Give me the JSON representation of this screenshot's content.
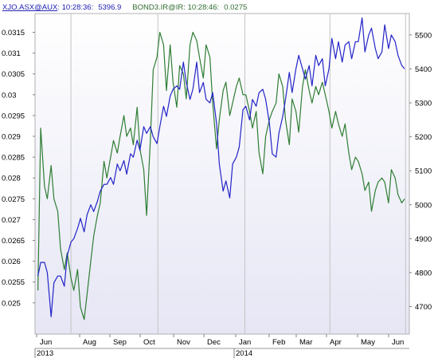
{
  "header": {
    "series1_symbol": "XJO.ASX@AUX",
    "series1_time": "10:28:36",
    "series1_value": "5396.9",
    "series2_symbol": "BOND3.IR@IR",
    "series2_time": "10:28:46",
    "series2_value": "0.0275"
  },
  "chart_data": {
    "type": "line",
    "x_axis": {
      "months": [
        "Jun",
        "Aug",
        "Sep",
        "Oct",
        "Nov",
        "Dec",
        "Jan",
        "Feb",
        "Mar",
        "Apr",
        "May",
        "Jun"
      ],
      "years": [
        "2013",
        "2014"
      ]
    },
    "y_left": {
      "series": "BOND3.IR@IR",
      "range": [
        0.02425,
        0.03195
      ],
      "ticks": [
        "0.0315",
        "0.031",
        "0.0305",
        "0.03",
        "0.0295",
        "0.029",
        "0.0285",
        "0.028",
        "0.0275",
        "0.027",
        "0.0265",
        "0.026",
        "0.0255",
        "0.025"
      ]
    },
    "y_right": {
      "series": "XJO.ASX@AUX",
      "range": [
        4619,
        5563
      ],
      "ticks": [
        "5500",
        "5400",
        "5300",
        "5200",
        "5100",
        "5000",
        "4900",
        "4800",
        "4700"
      ]
    },
    "grid": "vertical lines at year/quarter boundaries",
    "colors": {
      "xjo": "#2323c8",
      "bond": "#2e7d32",
      "header_xjo": "#1b1bb0",
      "header_bond": "#2e6b2e",
      "background_top": "#ffffff",
      "background_bottom": "#e6e6f5"
    },
    "series": [
      {
        "name": "XJO.ASX@AUX",
        "axis": "right",
        "x": [
          "2013-05-27",
          "2013-05-30",
          "2013-06-03",
          "2013-06-06",
          "2013-06-10",
          "2013-06-13",
          "2013-06-17",
          "2013-06-20",
          "2013-06-24",
          "2013-06-27",
          "2013-07-01",
          "2013-07-04",
          "2013-07-08",
          "2013-07-11",
          "2013-07-15",
          "2013-07-18",
          "2013-07-22",
          "2013-07-25",
          "2013-07-29",
          "2013-08-01",
          "2013-08-05",
          "2013-08-08",
          "2013-08-12",
          "2013-08-15",
          "2013-08-19",
          "2013-08-22",
          "2013-08-26",
          "2013-08-29",
          "2013-09-02",
          "2013-09-05",
          "2013-09-09",
          "2013-09-12",
          "2013-09-16",
          "2013-09-19",
          "2013-09-23",
          "2013-09-26",
          "2013-09-30",
          "2013-10-03",
          "2013-10-07",
          "2013-10-10",
          "2013-10-14",
          "2013-10-17",
          "2013-10-21",
          "2013-10-24",
          "2013-10-28",
          "2013-10-31",
          "2013-11-04",
          "2013-11-07",
          "2013-11-11",
          "2013-11-14",
          "2013-11-18",
          "2013-11-21",
          "2013-11-25",
          "2013-11-28",
          "2013-12-02",
          "2013-12-05",
          "2013-12-09",
          "2013-12-12",
          "2013-12-16",
          "2013-12-19",
          "2013-12-23",
          "2013-12-26",
          "2013-12-30",
          "2014-01-02",
          "2014-01-06",
          "2014-01-09",
          "2014-01-13",
          "2014-01-16",
          "2014-01-20",
          "2014-01-23",
          "2014-01-27",
          "2014-01-30",
          "2014-02-03",
          "2014-02-06",
          "2014-02-10",
          "2014-02-13",
          "2014-02-17",
          "2014-02-20",
          "2014-02-24",
          "2014-02-27",
          "2014-03-03",
          "2014-03-06",
          "2014-03-10",
          "2014-03-13",
          "2014-03-17",
          "2014-03-20",
          "2014-03-24",
          "2014-03-27",
          "2014-03-31",
          "2014-04-03",
          "2014-04-07",
          "2014-04-10",
          "2014-04-14",
          "2014-04-17",
          "2014-04-21",
          "2014-04-24",
          "2014-04-28",
          "2014-05-01",
          "2014-05-05",
          "2014-05-08",
          "2014-05-12",
          "2014-05-15",
          "2014-05-19",
          "2014-05-22",
          "2014-05-26",
          "2014-05-29",
          "2014-06-02",
          "2014-06-05",
          "2014-06-09",
          "2014-06-12",
          "2014-06-16",
          "2014-06-19"
        ],
        "values": [
          4790,
          4830,
          4830,
          4800,
          4670,
          4770,
          4790,
          4790,
          4760,
          4850,
          4890,
          4900,
          4930,
          4960,
          4920,
          4970,
          5000,
          4980,
          5010,
          5040,
          5060,
          5060,
          5080,
          5060,
          5120,
          5100,
          5130,
          5090,
          5150,
          5140,
          5190,
          5160,
          5230,
          5210,
          5230,
          5200,
          5180,
          5230,
          5290,
          5260,
          5320,
          5340,
          5350,
          5340,
          5420,
          5360,
          5310,
          5340,
          5420,
          5330,
          5360,
          5310,
          5300,
          5330,
          5240,
          5120,
          5040,
          5070,
          5020,
          5120,
          5140,
          5170,
          5280,
          5290,
          5250,
          5310,
          5290,
          5330,
          5340,
          5310,
          5240,
          5150,
          5140,
          5210,
          5260,
          5310,
          5390,
          5330,
          5400,
          5440,
          5400,
          5370,
          5410,
          5350,
          5440,
          5410,
          5430,
          5350,
          5400,
          5490,
          5430,
          5480,
          5420,
          5470,
          5480,
          5430,
          5480,
          5480,
          5550,
          5450,
          5500,
          5520,
          5460,
          5430,
          5450,
          5530,
          5460,
          5500,
          5480,
          5440,
          5410,
          5400
        ]
      },
      {
        "name": "BOND3.IR@IR",
        "axis": "left",
        "x": [
          "2013-05-27",
          "2013-05-30",
          "2013-06-03",
          "2013-06-06",
          "2013-06-10",
          "2013-06-13",
          "2013-06-17",
          "2013-06-20",
          "2013-06-24",
          "2013-06-27",
          "2013-07-01",
          "2013-07-04",
          "2013-07-08",
          "2013-07-11",
          "2013-07-15",
          "2013-07-18",
          "2013-07-22",
          "2013-07-25",
          "2013-07-29",
          "2013-08-01",
          "2013-08-05",
          "2013-08-08",
          "2013-08-12",
          "2013-08-15",
          "2013-08-19",
          "2013-08-22",
          "2013-08-26",
          "2013-08-29",
          "2013-09-02",
          "2013-09-05",
          "2013-09-09",
          "2013-09-12",
          "2013-09-16",
          "2013-09-19",
          "2013-09-23",
          "2013-09-26",
          "2013-09-30",
          "2013-10-03",
          "2013-10-07",
          "2013-10-10",
          "2013-10-14",
          "2013-10-17",
          "2013-10-21",
          "2013-10-24",
          "2013-10-28",
          "2013-10-31",
          "2013-11-04",
          "2013-11-07",
          "2013-11-11",
          "2013-11-14",
          "2013-11-18",
          "2013-11-21",
          "2013-11-25",
          "2013-11-28",
          "2013-12-02",
          "2013-12-05",
          "2013-12-09",
          "2013-12-12",
          "2013-12-16",
          "2013-12-19",
          "2013-12-23",
          "2013-12-26",
          "2013-12-30",
          "2014-01-02",
          "2014-01-06",
          "2014-01-09",
          "2014-01-13",
          "2014-01-16",
          "2014-01-20",
          "2014-01-23",
          "2014-01-27",
          "2014-01-30",
          "2014-02-03",
          "2014-02-06",
          "2014-02-10",
          "2014-02-13",
          "2014-02-17",
          "2014-02-20",
          "2014-02-24",
          "2014-02-27",
          "2014-03-03",
          "2014-03-06",
          "2014-03-10",
          "2014-03-13",
          "2014-03-17",
          "2014-03-20",
          "2014-03-24",
          "2014-03-27",
          "2014-03-31",
          "2014-04-03",
          "2014-04-07",
          "2014-04-10",
          "2014-04-14",
          "2014-04-17",
          "2014-04-21",
          "2014-04-24",
          "2014-04-28",
          "2014-05-01",
          "2014-05-05",
          "2014-05-08",
          "2014-05-12",
          "2014-05-15",
          "2014-05-19",
          "2014-05-22",
          "2014-05-26",
          "2014-05-29",
          "2014-06-02",
          "2014-06-05",
          "2014-06-09",
          "2014-06-12",
          "2014-06-16",
          "2014-06-19"
        ],
        "values": [
          0.0253,
          0.0292,
          0.0278,
          0.0275,
          0.0283,
          0.0275,
          0.0272,
          0.0263,
          0.0258,
          0.0262,
          0.0256,
          0.0253,
          0.0258,
          0.0249,
          0.0246,
          0.0252,
          0.026,
          0.0266,
          0.0271,
          0.0274,
          0.0284,
          0.028,
          0.0285,
          0.0289,
          0.0286,
          0.029,
          0.0295,
          0.029,
          0.0292,
          0.0288,
          0.0297,
          0.0287,
          0.0282,
          0.0271,
          0.0289,
          0.0306,
          0.0309,
          0.0315,
          0.0312,
          0.0301,
          0.0312,
          0.0303,
          0.0297,
          0.0307,
          0.0305,
          0.0299,
          0.0312,
          0.0315,
          0.0313,
          0.0309,
          0.0304,
          0.0312,
          0.0309,
          0.0298,
          0.0287,
          0.0294,
          0.0301,
          0.0303,
          0.0295,
          0.0298,
          0.0302,
          0.0304,
          0.03,
          0.03,
          0.0296,
          0.0292,
          0.0296,
          0.0286,
          0.0281,
          0.029,
          0.0294,
          0.0296,
          0.0298,
          0.0305,
          0.0302,
          0.0294,
          0.0288,
          0.0299,
          0.0296,
          0.0291,
          0.0302,
          0.0306,
          0.0301,
          0.0298,
          0.0302,
          0.03,
          0.0303,
          0.03,
          0.0296,
          0.0292,
          0.0296,
          0.0293,
          0.029,
          0.0293,
          0.0286,
          0.0282,
          0.0285,
          0.0284,
          0.0281,
          0.0277,
          0.0279,
          0.0272,
          0.0277,
          0.0279,
          0.028,
          0.0279,
          0.0274,
          0.0282,
          0.028,
          0.0276,
          0.0274,
          0.0275
        ]
      }
    ]
  }
}
